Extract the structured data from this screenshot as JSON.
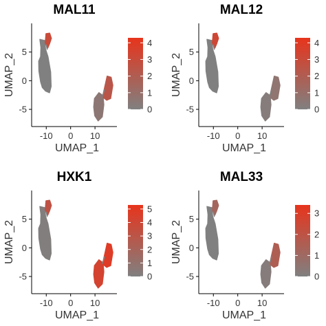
{
  "chart_data": [
    {
      "type": "scatter",
      "title": "MAL11",
      "xlabel": "UMAP_1",
      "ylabel": "UMAP_2",
      "xticks": [
        -10,
        0,
        10
      ],
      "yticks": [
        5,
        0,
        -5
      ],
      "xlim": [
        -16,
        19
      ],
      "ylim": [
        -8,
        10
      ],
      "legend_ticks": [
        4,
        3,
        2,
        1,
        0
      ],
      "legend_max": 4.3,
      "gradient": [
        "#808080",
        "#e8341c"
      ],
      "clusters": [
        {
          "name": "main",
          "level": 0
        },
        {
          "name": "top",
          "level": 0.7
        },
        {
          "name": "bottom",
          "level": 0.12
        },
        {
          "name": "bottom-upper",
          "level": 0.55
        }
      ]
    },
    {
      "type": "scatter",
      "title": "MAL12",
      "xlabel": "UMAP_1",
      "ylabel": "UMAP_2",
      "xticks": [
        -10,
        0,
        10
      ],
      "yticks": [
        5,
        0,
        -5
      ],
      "xlim": [
        -16,
        19
      ],
      "ylim": [
        -8,
        10
      ],
      "legend_ticks": [
        4,
        3,
        2,
        1,
        0
      ],
      "legend_max": 4.3,
      "gradient": [
        "#808080",
        "#e8341c"
      ],
      "clusters": [
        {
          "name": "main",
          "level": 0
        },
        {
          "name": "top",
          "level": 0.75
        },
        {
          "name": "bottom",
          "level": 0.05
        },
        {
          "name": "bottom-upper",
          "level": 0.15
        }
      ]
    },
    {
      "type": "scatter",
      "title": "HXK1",
      "xlabel": "UMAP_1",
      "ylabel": "UMAP_2",
      "xticks": [
        -10,
        0,
        10
      ],
      "yticks": [
        5,
        0,
        -5
      ],
      "xlim": [
        -16,
        19
      ],
      "ylim": [
        -8,
        10
      ],
      "legend_ticks": [
        5,
        4,
        3,
        2,
        1,
        0
      ],
      "legend_max": 5.3,
      "gradient": [
        "#808080",
        "#e8341c"
      ],
      "clusters": [
        {
          "name": "main",
          "level": 0.02
        },
        {
          "name": "top",
          "level": 0.6
        },
        {
          "name": "bottom",
          "level": 0.8
        },
        {
          "name": "bottom-upper",
          "level": 0.9
        }
      ]
    },
    {
      "type": "scatter",
      "title": "MAL33",
      "xlabel": "UMAP_1",
      "ylabel": "UMAP_2",
      "xticks": [
        -10,
        0,
        10
      ],
      "yticks": [
        5,
        0,
        -5
      ],
      "xlim": [
        -16,
        19
      ],
      "ylim": [
        -8,
        10
      ],
      "legend_ticks": [
        3,
        2,
        1,
        0
      ],
      "legend_max": 3.4,
      "gradient": [
        "#808080",
        "#e8341c"
      ],
      "clusters": [
        {
          "name": "main",
          "level": 0
        },
        {
          "name": "top",
          "level": 0.35
        },
        {
          "name": "bottom",
          "level": 0.05
        },
        {
          "name": "bottom-upper",
          "level": 0.45
        }
      ]
    }
  ]
}
